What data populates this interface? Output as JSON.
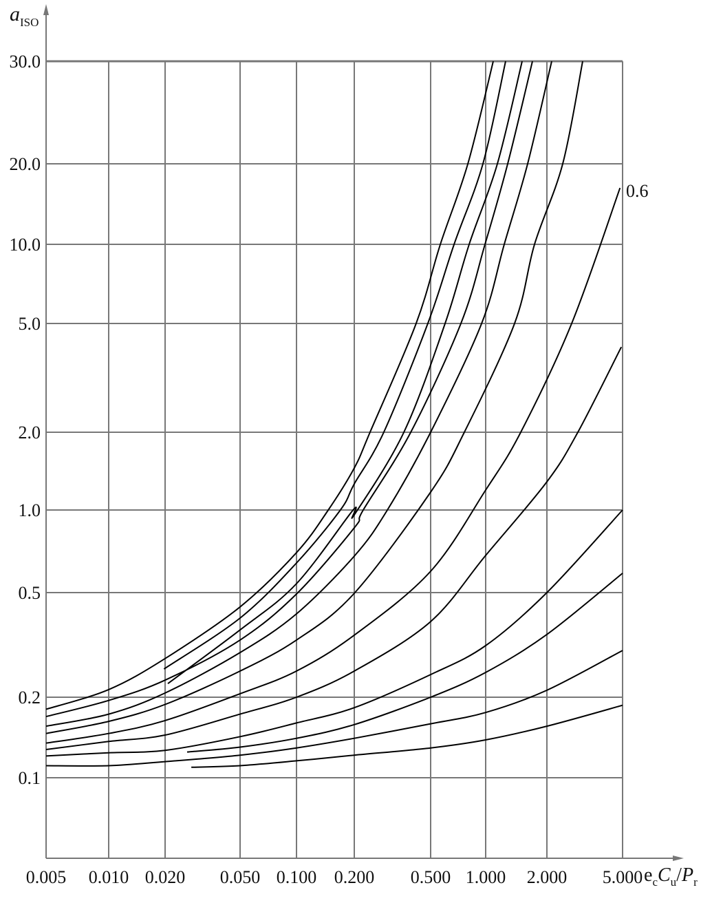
{
  "chart_data": {
    "type": "line",
    "ylabel": {
      "main": "a",
      "sub": "ISO"
    },
    "xlabel": {
      "e": "e",
      "e_sub": "c",
      "c": "C",
      "c_sub": "u",
      "slash": "/",
      "p": "P",
      "p_sub": "r"
    },
    "x_scale": "nonuniform (tick-spaced)",
    "y_scale": "nonuniform (tick-spaced)",
    "x_ticks": [
      0.005,
      0.01,
      0.02,
      0.05,
      0.1,
      0.2,
      0.5,
      1,
      2,
      5
    ],
    "x_tick_labels": [
      "0.005",
      "0.010",
      "0.020",
      "0.050",
      "0.100",
      "0.200",
      "0.500",
      "1.000",
      "2.000",
      "5.000"
    ],
    "y_ticks": [
      0.1,
      0.2,
      0.5,
      1,
      2,
      5,
      10,
      20,
      30
    ],
    "y_tick_labels": [
      "0.1",
      "0.2",
      "0.5",
      "1.0",
      "2.0",
      "5.0",
      "10.0",
      "20.0",
      "30.0"
    ],
    "xlim": [
      0.005,
      5
    ],
    "ylim_top": 30,
    "grid": true,
    "line_color": "#000000",
    "grid_color": "#777777",
    "annotation": {
      "text": "0.6",
      "series_index": 6
    },
    "series": [
      {
        "points": [
          [
            0.005,
            0.185
          ],
          [
            0.01,
            0.222
          ],
          [
            0.02,
            0.311
          ],
          [
            0.05,
            0.459
          ],
          [
            0.1,
            0.742
          ],
          [
            0.155,
            1.0
          ],
          [
            0.2,
            1.54
          ],
          [
            0.262,
            2
          ],
          [
            0.443,
            5
          ],
          [
            0.588,
            10
          ],
          [
            0.838,
            20
          ],
          [
            1.124,
            30
          ]
        ]
      },
      {
        "points": [
          [
            0.0198,
            0.281
          ],
          [
            0.05,
            0.427
          ],
          [
            0.1,
            0.679
          ],
          [
            0.176,
            1.0
          ],
          [
            0.2,
            1.336
          ],
          [
            0.316,
            2
          ],
          [
            0.489,
            5
          ],
          [
            0.713,
            10
          ],
          [
            0.975,
            20
          ],
          [
            1.326,
            30
          ]
        ]
      },
      {
        "points": [
          [
            0.0211,
            0.239
          ],
          [
            0.05,
            0.393
          ],
          [
            0.1,
            0.554
          ],
          [
            0.198,
            1.0
          ],
          [
            0.2,
            0.971
          ],
          [
            0.395,
            2
          ],
          [
            0.631,
            5
          ],
          [
            0.85,
            10
          ],
          [
            1.191,
            20
          ],
          [
            1.596,
            30
          ]
        ]
      },
      {
        "points": [
          [
            0.005,
            0.176
          ],
          [
            0.01,
            0.196
          ],
          [
            0.02,
            0.249
          ],
          [
            0.05,
            0.364
          ],
          [
            0.1,
            0.496
          ],
          [
            0.2,
            0.892
          ],
          [
            0.235,
            1.0
          ],
          [
            0.422,
            2
          ],
          [
            0.775,
            5
          ],
          [
            0.994,
            10
          ],
          [
            1.36,
            20
          ],
          [
            1.764,
            30
          ]
        ]
      },
      {
        "points": [
          [
            0.005,
            0.164
          ],
          [
            0.01,
            0.179
          ],
          [
            0.02,
            0.212
          ],
          [
            0.05,
            0.328
          ],
          [
            0.1,
            0.439
          ],
          [
            0.2,
            0.721
          ],
          [
            0.33,
            1.0
          ],
          [
            0.5,
            2
          ],
          [
            0.963,
            5
          ],
          [
            1.303,
            10
          ],
          [
            1.685,
            20
          ],
          [
            2.19,
            30
          ]
        ]
      },
      {
        "points": [
          [
            0.005,
            0.155
          ],
          [
            0.01,
            0.17
          ],
          [
            0.02,
            0.191
          ],
          [
            0.05,
            0.275
          ],
          [
            0.1,
            0.364
          ],
          [
            0.2,
            0.498
          ],
          [
            0.5,
            1.23
          ],
          [
            0.806,
            2
          ],
          [
            1.472,
            5
          ],
          [
            1.798,
            10
          ],
          [
            2.627,
            20
          ],
          [
            3.418,
            30
          ]
        ]
      },
      {
        "points": [
          [
            0.005,
            0.143
          ],
          [
            0.01,
            0.155
          ],
          [
            0.02,
            0.171
          ],
          [
            0.05,
            0.21
          ],
          [
            0.1,
            0.275
          ],
          [
            0.2,
            0.378
          ],
          [
            0.5,
            0.629
          ],
          [
            1,
            1.257
          ],
          [
            1.573,
            2
          ],
          [
            2.982,
            5
          ],
          [
            4.9,
            17
          ]
        ]
      },
      {
        "points": [
          [
            0.005,
            0.135
          ],
          [
            0.01,
            0.145
          ],
          [
            0.02,
            0.153
          ],
          [
            0.05,
            0.179
          ],
          [
            0.1,
            0.2
          ],
          [
            0.2,
            0.275
          ],
          [
            0.5,
            0.417
          ],
          [
            1,
            0.725
          ],
          [
            2,
            1.363
          ],
          [
            3.227,
            2
          ],
          [
            4.95,
            4.35
          ]
        ]
      },
      {
        "points": [
          [
            0.005,
            0.127
          ],
          [
            0.01,
            0.131
          ],
          [
            0.02,
            0.134
          ],
          [
            0.05,
            0.151
          ],
          [
            0.1,
            0.168
          ],
          [
            0.2,
            0.187
          ],
          [
            0.5,
            0.265
          ],
          [
            1,
            0.348
          ],
          [
            2,
            0.5
          ],
          [
            5,
            1.0
          ]
        ]
      },
      {
        "points": [
          [
            0.0288,
            0.132
          ],
          [
            0.05,
            0.138
          ],
          [
            0.1,
            0.149
          ],
          [
            0.2,
            0.166
          ],
          [
            0.5,
            0.2
          ],
          [
            1,
            0.271
          ],
          [
            2,
            0.38
          ],
          [
            5,
            0.617
          ]
        ]
      },
      {
        "points": [
          [
            0.005,
            0.115
          ],
          [
            0.01,
            0.115
          ],
          [
            0.02,
            0.12
          ],
          [
            0.05,
            0.128
          ],
          [
            0.1,
            0.137
          ],
          [
            0.2,
            0.149
          ],
          [
            0.5,
            0.167
          ],
          [
            1,
            0.181
          ],
          [
            2,
            0.22
          ],
          [
            5,
            0.334
          ]
        ]
      },
      {
        "points": [
          [
            0.0305,
            0.113
          ],
          [
            0.05,
            0.115
          ],
          [
            0.1,
            0.121
          ],
          [
            0.2,
            0.128
          ],
          [
            0.5,
            0.137
          ],
          [
            1,
            0.147
          ],
          [
            2,
            0.164
          ],
          [
            5,
            0.19
          ]
        ]
      }
    ]
  }
}
